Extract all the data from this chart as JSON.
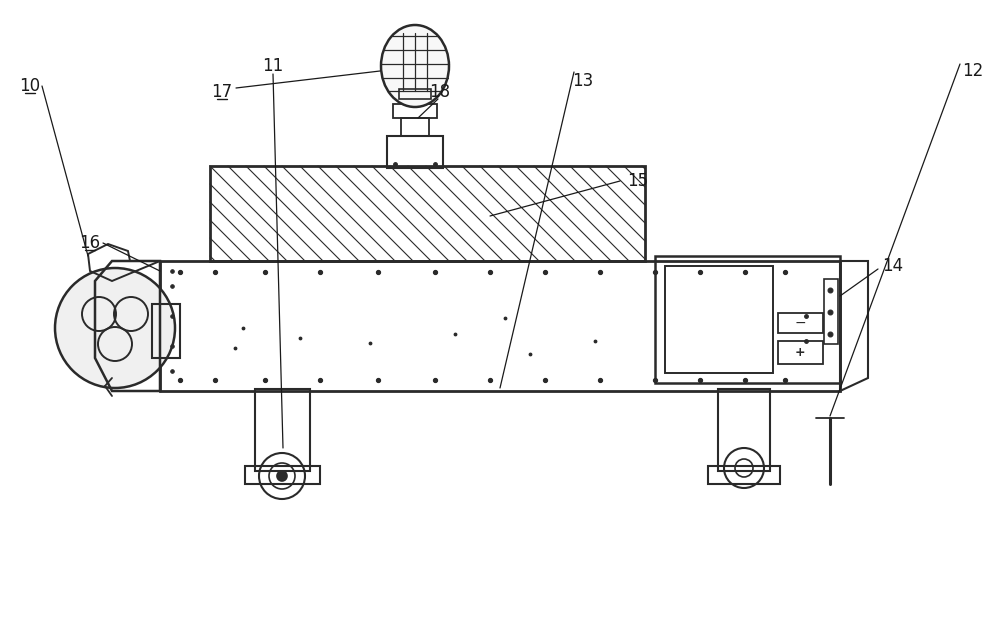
{
  "bg_color": "#ffffff",
  "line_color": "#2a2a2a",
  "lw": 1.2,
  "label_font": 12,
  "label_color": "#1a1a1a",
  "labels": [
    "10",
    "11",
    "12",
    "13",
    "14",
    "15",
    "16",
    "17",
    "18"
  ],
  "underline_labels": [
    "10",
    "16",
    "17"
  ]
}
